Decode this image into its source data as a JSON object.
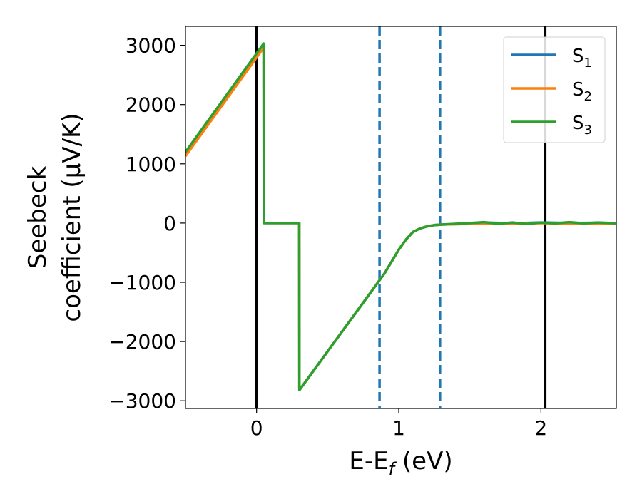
{
  "chart_data": {
    "type": "line",
    "xlabel": "E-E",
    "xlabel_sub": "f",
    "xlabel_unit": " (eV)",
    "ylabel_line1": "Seebeck",
    "ylabel_line2": "coefficient  (μV/K)",
    "xlim": [
      -0.5,
      2.53
    ],
    "ylim": [
      -3130,
      3320
    ],
    "xticks": [
      0,
      1,
      2
    ],
    "xtick_labels": [
      "0",
      "1",
      "2"
    ],
    "yticks": [
      3000,
      2000,
      1000,
      0,
      -1000,
      -2000,
      -3000
    ],
    "ytick_labels": [
      "3000",
      "2000",
      "1000",
      "0",
      "−1000",
      "−2000",
      "−3000"
    ],
    "grid": false,
    "legend_position": "upper-right",
    "vlines_solid": [
      0,
      2.03
    ],
    "vlines_dashed": [
      0.865,
      1.29
    ],
    "vline_solid_color": "#000000",
    "vline_dashed_color": "#1f77b4",
    "series": [
      {
        "name": "S",
        "sub": "1",
        "color": "#1f77b4",
        "x": [
          -0.5,
          0.05,
          0.051,
          0.3,
          0.301,
          0.9,
          1.0,
          1.05,
          1.1,
          1.15,
          1.2,
          1.25,
          1.3,
          1.5,
          1.6,
          1.8,
          2.0,
          2.2,
          2.4,
          2.53
        ],
        "y": [
          1180,
          3000,
          0,
          0,
          -2820,
          -850,
          -450,
          -280,
          -150,
          -90,
          -55,
          -35,
          -25,
          -10,
          10,
          -5,
          10,
          0,
          5,
          0
        ]
      },
      {
        "name": "S",
        "sub": "2",
        "color": "#ff7f0e",
        "x": [
          -0.5,
          0.05,
          0.051,
          0.3,
          0.301,
          0.9,
          1.0,
          1.05,
          1.1,
          1.15,
          1.2,
          1.25,
          1.3,
          1.5,
          1.65,
          1.8,
          2.0,
          2.2,
          2.4,
          2.53
        ],
        "y": [
          1130,
          2960,
          0,
          0,
          -2820,
          -850,
          -450,
          -280,
          -150,
          -90,
          -55,
          -35,
          -25,
          -15,
          -10,
          -15,
          0,
          -10,
          -5,
          -10
        ]
      },
      {
        "name": "S",
        "sub": "3",
        "color": "#2ca02c",
        "x": [
          -0.5,
          0.05,
          0.051,
          0.3,
          0.301,
          0.9,
          1.0,
          1.05,
          1.1,
          1.15,
          1.2,
          1.25,
          1.3,
          1.5,
          1.6,
          1.7,
          1.8,
          1.9,
          2.0,
          2.1,
          2.2,
          2.3,
          2.4,
          2.53
        ],
        "y": [
          1200,
          3030,
          0,
          0,
          -2820,
          -850,
          -450,
          -280,
          -150,
          -90,
          -55,
          -35,
          -25,
          0,
          15,
          -10,
          10,
          -15,
          10,
          -5,
          15,
          -5,
          10,
          -5
        ]
      }
    ]
  }
}
